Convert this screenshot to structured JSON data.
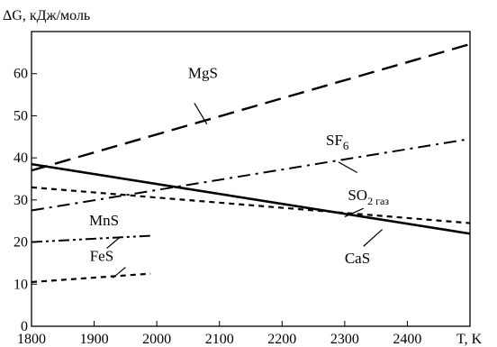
{
  "chart_data": {
    "type": "line",
    "ylabel": "ΔG, кДж/моль",
    "xlabel": "T, K",
    "xlim": [
      1800,
      2500
    ],
    "ylim": [
      0,
      70
    ],
    "xticks": [
      1800,
      1900,
      2000,
      2100,
      2200,
      2300,
      2400
    ],
    "yticks": [
      0,
      10,
      20,
      30,
      40,
      50,
      60
    ],
    "grid": false,
    "legend": "none",
    "series": [
      {
        "name": "MgS",
        "style": "long-dash",
        "x": [
          1800,
          2500
        ],
        "y": [
          37,
          67
        ],
        "label_at": {
          "x": 2050,
          "y": 59
        },
        "leader": [
          [
            2060,
            53
          ],
          [
            2080,
            48
          ]
        ]
      },
      {
        "name": "SF",
        "sub": "6",
        "style": "dash-dot",
        "x": [
          1800,
          2500
        ],
        "y": [
          27.5,
          44.5
        ],
        "label_at": {
          "x": 2270,
          "y": 43
        },
        "leader": [
          [
            2290,
            39
          ],
          [
            2320,
            36.5
          ]
        ]
      },
      {
        "name": "SO",
        "sub": "2 газ",
        "style": "short-dash",
        "x": [
          1800,
          2500
        ],
        "y": [
          33,
          24.5
        ],
        "label_at": {
          "x": 2305,
          "y": 30
        },
        "leader": [
          [
            2300,
            26
          ],
          [
            2330,
            28
          ]
        ]
      },
      {
        "name": "CaS",
        "style": "solid",
        "x": [
          1800,
          2500
        ],
        "y": [
          38.5,
          22
        ],
        "label_at": {
          "x": 2300,
          "y": 15
        },
        "leader": [
          [
            2330,
            19
          ],
          [
            2360,
            23
          ]
        ]
      },
      {
        "name": "MnS",
        "style": "dash-dot-dot",
        "x": [
          1800,
          1990
        ],
        "y": [
          20,
          21.5
        ],
        "label_at": {
          "x": 1892,
          "y": 24
        },
        "leader": [
          [
            1920,
            18.5
          ],
          [
            1940,
            21
          ]
        ]
      },
      {
        "name": "FeS",
        "style": "short-dash",
        "x": [
          1800,
          1990
        ],
        "y": [
          10.5,
          12.5
        ],
        "label_at": {
          "x": 1893,
          "y": 15.5
        },
        "leader": [
          [
            1930,
            11.5
          ],
          [
            1950,
            14
          ]
        ]
      }
    ]
  }
}
